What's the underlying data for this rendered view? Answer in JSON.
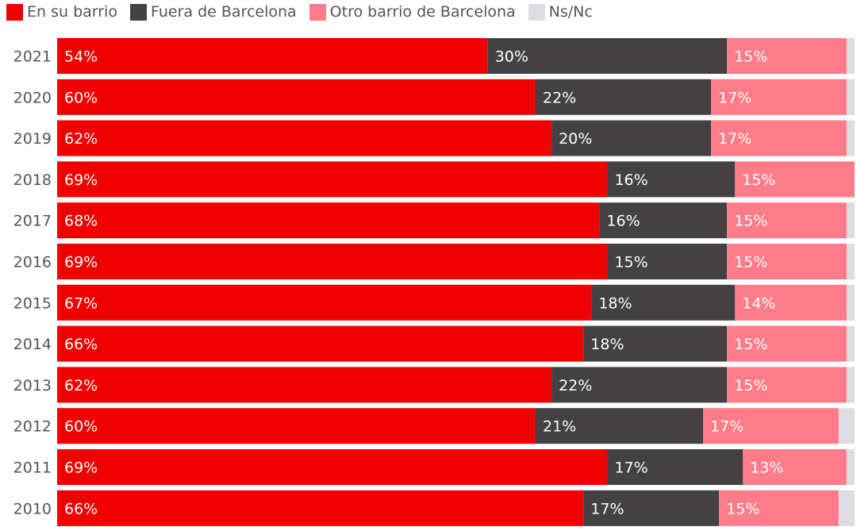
{
  "legend": [
    {
      "label": "En su barrio",
      "color": "#ee0000"
    },
    {
      "label": "Fuera de Barcelona",
      "color": "#444142"
    },
    {
      "label": "Otro barrio de Barcelona",
      "color": "#ff7c88"
    },
    {
      "label": "Ns/Nc",
      "color": "#dcdce2"
    }
  ],
  "chart_data": {
    "type": "bar",
    "orientation": "horizontal",
    "stacked": true,
    "categories": [
      "2021",
      "2020",
      "2019",
      "2018",
      "2017",
      "2016",
      "2015",
      "2014",
      "2013",
      "2012",
      "2011",
      "2010"
    ],
    "series": [
      {
        "name": "En su barrio",
        "color": "#ee0000",
        "values": [
          54,
          60,
          62,
          69,
          68,
          69,
          67,
          66,
          62,
          60,
          69,
          66
        ],
        "labels": [
          "54%",
          "60%",
          "62%",
          "69%",
          "68%",
          "69%",
          "67%",
          "66%",
          "62%",
          "60%",
          "69%",
          "66%"
        ]
      },
      {
        "name": "Fuera de Barcelona",
        "color": "#444142",
        "values": [
          30,
          22,
          20,
          16,
          16,
          15,
          18,
          18,
          22,
          21,
          17,
          17
        ],
        "labels": [
          "30%",
          "22%",
          "20%",
          "16%",
          "16%",
          "15%",
          "18%",
          "18%",
          "22%",
          "21%",
          "17%",
          "17%"
        ]
      },
      {
        "name": "Otro barrio de Barcelona",
        "color": "#ff7c88",
        "values": [
          15,
          17,
          17,
          15,
          15,
          15,
          14,
          15,
          15,
          17,
          13,
          15
        ],
        "labels": [
          "15%",
          "17%",
          "17%",
          "15%",
          "15%",
          "15%",
          "14%",
          "15%",
          "15%",
          "17%",
          "13%",
          "15%"
        ]
      },
      {
        "name": "Ns/Nc",
        "color": "#dcdce2",
        "values": [
          1,
          1,
          1,
          0,
          1,
          1,
          1,
          1,
          1,
          2,
          1,
          2
        ],
        "labels": [
          "",
          "",
          "",
          "",
          "",
          "",
          "",
          "",
          "",
          "",
          "",
          ""
        ]
      }
    ],
    "xlim": [
      0,
      100
    ],
    "legend_position": "top-left"
  }
}
